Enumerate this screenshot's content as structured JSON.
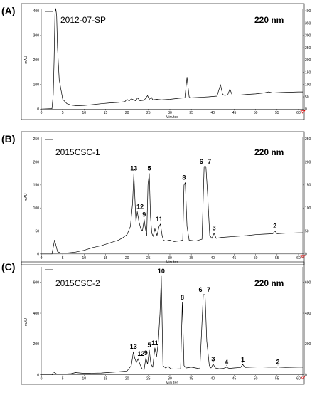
{
  "chart_data": [
    {
      "type": "line",
      "panel": "(A)",
      "sample": "2012-07-SP",
      "wavelength": "220 nm",
      "xlabel": "Minutes",
      "ylabel": "mAU",
      "xlim": [
        0,
        61
      ],
      "ylim": [
        -8,
        410
      ],
      "xticks": [
        0,
        5,
        10,
        15,
        20,
        25,
        30,
        35,
        40,
        45,
        50,
        55,
        60
      ],
      "yticks_left": [
        0,
        100,
        200,
        300,
        400
      ],
      "yticks_right": [
        0,
        50,
        100,
        150,
        200,
        250,
        300,
        350,
        400
      ],
      "x": [
        0,
        2.5,
        2.8,
        3.0,
        3.2,
        3.4,
        3.6,
        3.8,
        4.2,
        5,
        6,
        7,
        8,
        9,
        10,
        12,
        14,
        16,
        18,
        19.5,
        20,
        20.5,
        21,
        22,
        22.5,
        23,
        24,
        24.8,
        25.2,
        25.7,
        26,
        27,
        28,
        30,
        32,
        33.5,
        34,
        34.5,
        35,
        37,
        39,
        41,
        41.8,
        42.3,
        42.8,
        43.5,
        44,
        44.5,
        46,
        48,
        50,
        52,
        53,
        54,
        56,
        58,
        60,
        61
      ],
      "y": [
        0,
        2,
        60,
        200,
        390,
        410,
        380,
        250,
        120,
        40,
        22,
        16,
        14,
        14,
        15,
        18,
        22,
        25,
        27,
        30,
        40,
        33,
        42,
        34,
        46,
        34,
        36,
        55,
        40,
        48,
        38,
        40,
        38,
        40,
        44,
        46,
        130,
        50,
        46,
        48,
        50,
        53,
        100,
        60,
        56,
        58,
        82,
        58,
        57,
        60,
        62,
        66,
        70,
        66,
        68,
        69,
        70,
        70
      ],
      "annotations": []
    },
    {
      "type": "line",
      "panel": "(B)",
      "sample": "2015CSC-1",
      "wavelength": "220 nm",
      "xlabel": "Minutes",
      "ylabel": "mAU",
      "xlim": [
        0,
        61
      ],
      "ylim": [
        -8,
        255
      ],
      "xticks": [
        0,
        5,
        10,
        15,
        20,
        25,
        30,
        35,
        40,
        45,
        50,
        55,
        60
      ],
      "yticks_left": [
        0,
        50,
        100,
        150,
        200,
        250
      ],
      "yticks_right": [
        0,
        50,
        100,
        150,
        200,
        250
      ],
      "x": [
        0,
        2.5,
        2.9,
        3.1,
        3.4,
        3.8,
        4.5,
        6,
        8,
        10,
        12,
        14,
        16,
        18,
        19,
        20,
        20.8,
        21.3,
        21.6,
        21.9,
        22.1,
        22.4,
        22.8,
        23.2,
        23.6,
        24.0,
        24.3,
        24.6,
        24.9,
        25.2,
        25.5,
        25.8,
        26.1,
        26.5,
        27.0,
        27.5,
        27.8,
        28.2,
        28.5,
        29,
        30,
        31,
        32,
        33.0,
        33.3,
        33.6,
        34.0,
        34.5,
        36,
        37.5,
        38.0,
        38.4,
        38.8,
        39.3,
        39.8,
        40.3,
        40.8,
        42,
        45,
        48,
        50,
        52,
        54,
        54.5,
        55,
        57,
        60,
        61
      ],
      "y": [
        0,
        0,
        20,
        30,
        20,
        5,
        2,
        2,
        4,
        8,
        14,
        18,
        24,
        30,
        35,
        42,
        60,
        110,
        175,
        110,
        70,
        92,
        70,
        55,
        50,
        75,
        55,
        40,
        150,
        175,
        80,
        45,
        38,
        55,
        40,
        60,
        65,
        40,
        30,
        28,
        30,
        27,
        28,
        30,
        150,
        155,
        60,
        30,
        28,
        32,
        190,
        190,
        130,
        40,
        34,
        45,
        34,
        36,
        38,
        40,
        42,
        43,
        44,
        50,
        44,
        45,
        46,
        46
      ],
      "annotations": [
        {
          "label": "13",
          "x": 21.6,
          "y": 175
        },
        {
          "label": "12",
          "x": 22.4,
          "y": 92
        },
        {
          "label": "9",
          "x": 24.0,
          "y": 75
        },
        {
          "label": "5",
          "x": 25.2,
          "y": 175
        },
        {
          "label": "11",
          "x": 27.5,
          "y": 65
        },
        {
          "label": "8",
          "x": 33.3,
          "y": 155
        },
        {
          "label": "6",
          "x": 38.0,
          "y": 190
        },
        {
          "label": "7",
          "x": 38.4,
          "y": 190
        },
        {
          "label": "3",
          "x": 40.3,
          "y": 45
        },
        {
          "label": "2",
          "x": 54.5,
          "y": 50
        }
      ]
    },
    {
      "type": "line",
      "panel": "(C)",
      "sample": "2015CSC-2",
      "wavelength": "220 nm",
      "xlabel": "Minutes",
      "ylabel": "mAU",
      "xlim": [
        0,
        61
      ],
      "ylim": [
        -15,
        700
      ],
      "xticks": [
        0,
        5,
        10,
        15,
        20,
        25,
        30,
        35,
        40,
        45,
        50,
        55,
        60
      ],
      "yticks_left": [
        0,
        200,
        400,
        600
      ],
      "yticks_right": [
        0,
        200,
        400,
        600
      ],
      "x": [
        0,
        2.5,
        2.9,
        3.2,
        3.6,
        5,
        7,
        8,
        10,
        14,
        18,
        20,
        21.0,
        21.5,
        21.8,
        22.2,
        22.6,
        23.0,
        23.5,
        24.0,
        24.4,
        24.8,
        25.2,
        25.6,
        26.0,
        26.5,
        26.9,
        27.3,
        27.7,
        28.0,
        28.4,
        29,
        29.6,
        30.2,
        31,
        32.5,
        32.9,
        33.3,
        33.8,
        35,
        37,
        37.8,
        38.2,
        38.6,
        39.2,
        39.6,
        40.1,
        40.6,
        41.5,
        42.5,
        43.2,
        43.8,
        45,
        46.5,
        47.0,
        47.5,
        49,
        51,
        53,
        55,
        55.2,
        55.5,
        57,
        60,
        61
      ],
      "y": [
        0,
        0,
        20,
        12,
        6,
        5,
        8,
        15,
        10,
        12,
        20,
        25,
        60,
        150,
        110,
        80,
        105,
        70,
        40,
        35,
        110,
        70,
        160,
        70,
        50,
        175,
        120,
        210,
        400,
        640,
        60,
        45,
        55,
        40,
        38,
        40,
        470,
        60,
        45,
        50,
        40,
        520,
        520,
        220,
        60,
        45,
        70,
        45,
        40,
        42,
        50,
        42,
        45,
        48,
        68,
        48,
        50,
        52,
        50,
        50,
        52,
        50,
        48,
        50,
        50
      ],
      "annotations": [
        {
          "label": "13",
          "x": 21.5,
          "y": 150
        },
        {
          "label": "12",
          "x": 22.6,
          "y": 105
        },
        {
          "label": "9",
          "x": 24.4,
          "y": 110
        },
        {
          "label": "5",
          "x": 25.2,
          "y": 160
        },
        {
          "label": "11",
          "x": 26.5,
          "y": 175
        },
        {
          "label": "10",
          "x": 28.0,
          "y": 640
        },
        {
          "label": "8",
          "x": 32.9,
          "y": 470
        },
        {
          "label": "6",
          "x": 37.8,
          "y": 520
        },
        {
          "label": "7",
          "x": 38.2,
          "y": 520
        },
        {
          "label": "3",
          "x": 40.1,
          "y": 70
        },
        {
          "label": "4",
          "x": 43.2,
          "y": 50
        },
        {
          "label": "1",
          "x": 47.0,
          "y": 68
        },
        {
          "label": "2",
          "x": 55.2,
          "y": 52
        }
      ]
    }
  ]
}
